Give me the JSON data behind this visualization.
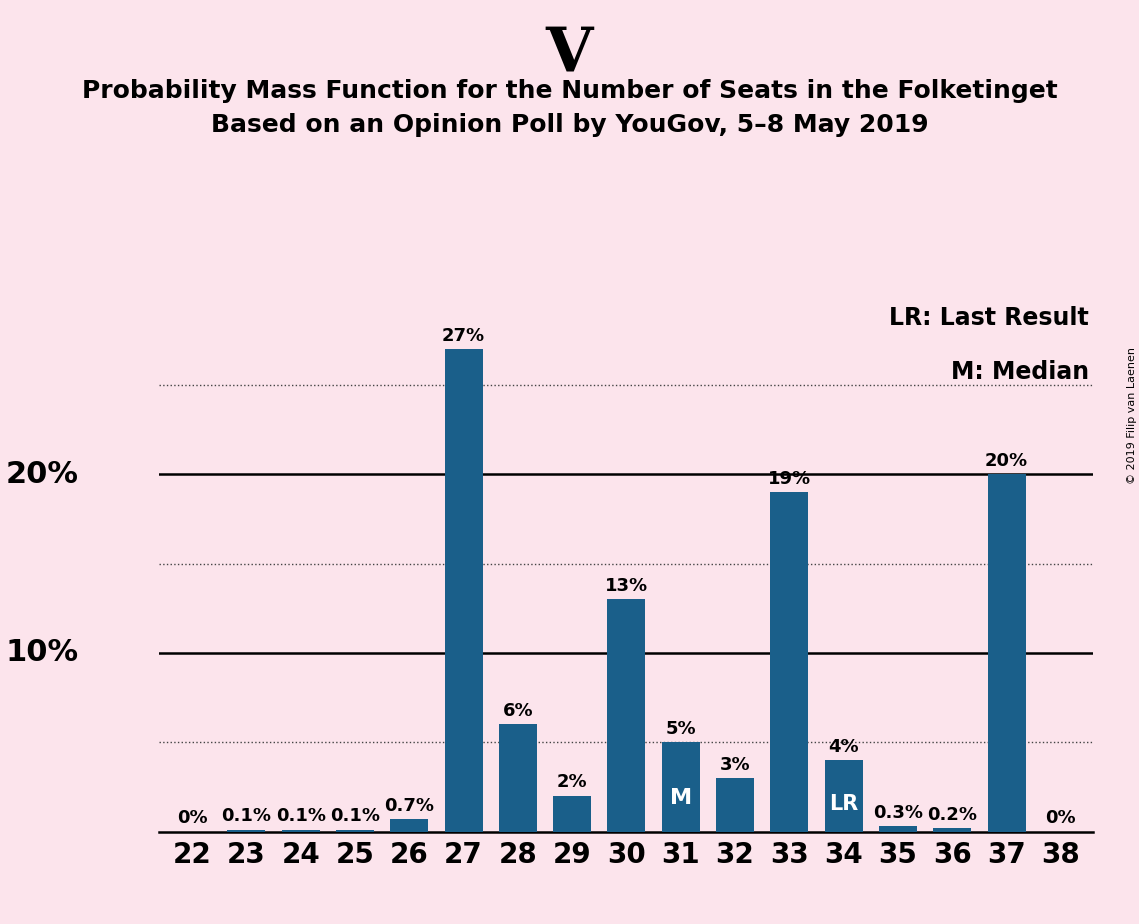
{
  "title_big": "V",
  "title_line1": "Probability Mass Function for the Number of Seats in the Folketinget",
  "title_line2": "Based on an Opinion Poll by YouGov, 5–8 May 2019",
  "copyright_text": "© 2019 Filip van Laenen",
  "categories": [
    22,
    23,
    24,
    25,
    26,
    27,
    28,
    29,
    30,
    31,
    32,
    33,
    34,
    35,
    36,
    37,
    38
  ],
  "values": [
    0.0,
    0.1,
    0.1,
    0.1,
    0.7,
    27.0,
    6.0,
    2.0,
    13.0,
    5.0,
    3.0,
    19.0,
    4.0,
    0.3,
    0.2,
    20.0,
    0.0
  ],
  "labels": [
    "0%",
    "0.1%",
    "0.1%",
    "0.1%",
    "0.7%",
    "27%",
    "6%",
    "2%",
    "13%",
    "5%",
    "3%",
    "19%",
    "4%",
    "0.3%",
    "0.2%",
    "20%",
    "0%"
  ],
  "bar_color": "#1a5f8a",
  "background_color": "#fce4ec",
  "median_bar": 31,
  "lr_bar": 34,
  "legend_lr": "LR: Last Result",
  "legend_m": "M: Median",
  "ylim": [
    0,
    30
  ],
  "solid_yticks": [
    10,
    20
  ],
  "dotted_yticks": [
    5,
    15,
    25
  ],
  "title_big_fontsize": 44,
  "title_line1_fontsize": 18,
  "title_line2_fontsize": 18,
  "xtick_fontsize": 20,
  "ytick_fontsize": 22,
  "bar_label_fontsize": 13,
  "legend_fontsize": 17,
  "copyright_fontsize": 8,
  "inside_label_fontsize": 16
}
